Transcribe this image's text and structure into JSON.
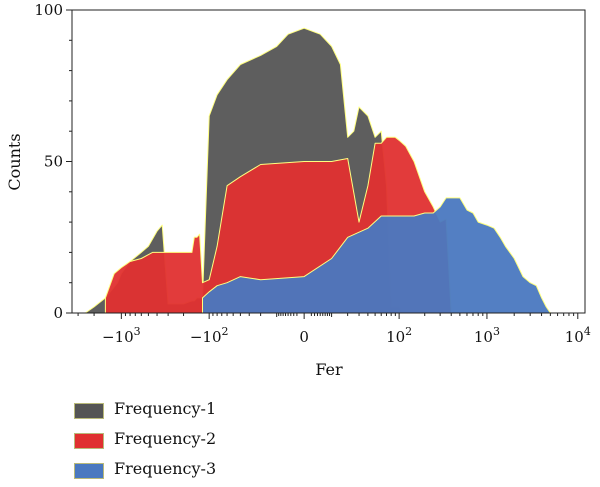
{
  "chart_data": {
    "type": "area",
    "xlabel": "Fer",
    "ylabel": "Counts",
    "xscale": "symlog",
    "xlim": [
      -3500,
      12000
    ],
    "ylim": [
      0,
      100
    ],
    "grid": false,
    "legend_placement": "below",
    "edge_color": "#ffff80",
    "x_ticks": [
      {
        "value": -1000,
        "base": "−1",
        "exp": "3"
      },
      {
        "value": -100,
        "base": "−1",
        "exp": "2"
      },
      {
        "value": 0,
        "base": "0",
        "exp": ""
      },
      {
        "value": 100,
        "base": "1",
        "exp": "2"
      },
      {
        "value": 1000,
        "base": "1",
        "exp": "3"
      },
      {
        "value": 10000,
        "base": "1",
        "exp": "4"
      }
    ],
    "y_ticks": [
      {
        "value": 0,
        "label": "0"
      },
      {
        "value": 50,
        "label": "50"
      },
      {
        "value": 100,
        "label": "100"
      }
    ],
    "series": [
      {
        "name": "Frequency-1",
        "color": "#555555",
        "x": [
          -2500,
          -2000,
          -1500,
          -1100,
          -1000,
          -800,
          -600,
          -500,
          -400,
          -350,
          -300,
          -280,
          -250,
          -200,
          -160,
          -150,
          -140,
          -120,
          -100,
          -80,
          -60,
          -40,
          -20,
          -10,
          -5,
          0,
          5,
          10,
          15,
          20,
          25,
          30,
          40,
          50,
          60,
          70,
          80,
          90,
          100,
          110,
          120
        ],
        "y": [
          0,
          2,
          5,
          10,
          13,
          17,
          20,
          22,
          27,
          29,
          3,
          3,
          3,
          3,
          4,
          4,
          5,
          5,
          65,
          72,
          77,
          82,
          85,
          88,
          92,
          94,
          92,
          88,
          82,
          58,
          60,
          68,
          65,
          58,
          60,
          42,
          2,
          2,
          2,
          0,
          0
        ]
      },
      {
        "name": "Frequency-2",
        "color": "#e03030",
        "x": [
          -1500,
          -1200,
          -1000,
          -800,
          -600,
          -450,
          -400,
          -300,
          -250,
          -200,
          -180,
          -160,
          -150,
          -140,
          -130,
          -120,
          -100,
          -80,
          -60,
          -40,
          -20,
          0,
          10,
          20,
          30,
          40,
          50,
          60,
          70,
          80,
          90,
          100,
          120,
          150,
          200,
          250,
          300,
          350,
          400
        ],
        "y": [
          5,
          13,
          15,
          17,
          18,
          20,
          20,
          20,
          20,
          20,
          20,
          20,
          25,
          25,
          26,
          10,
          11,
          22,
          42,
          45,
          49,
          50,
          50,
          51,
          30,
          42,
          56,
          56,
          58,
          58,
          58,
          57,
          55,
          50,
          40,
          35,
          30,
          31,
          0
        ]
      },
      {
        "name": "Frequency-3",
        "color": "#4a78c0",
        "x": [
          -120,
          -100,
          -80,
          -60,
          -40,
          -20,
          0,
          10,
          20,
          40,
          60,
          80,
          100,
          150,
          200,
          250,
          300,
          350,
          400,
          500,
          600,
          700,
          800,
          1000,
          1200,
          1400,
          1600,
          2000,
          2500,
          3000,
          3500,
          4000,
          4500,
          5000
        ],
        "y": [
          5,
          7,
          9,
          10,
          12,
          11,
          12,
          18,
          25,
          28,
          32,
          32,
          32,
          32,
          33,
          33,
          35,
          38,
          38,
          38,
          34,
          33,
          30,
          29,
          28,
          25,
          22,
          18,
          12,
          10,
          9,
          5,
          2,
          0
        ]
      }
    ]
  }
}
